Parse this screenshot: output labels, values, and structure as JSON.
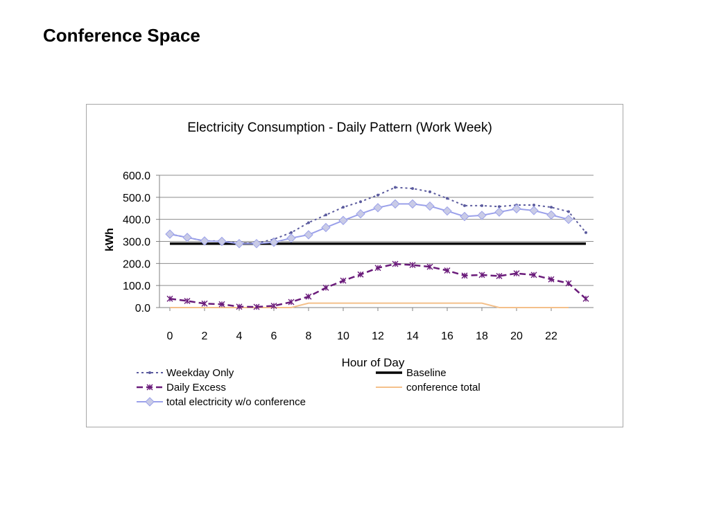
{
  "slide": {
    "title": "Conference Space"
  },
  "chart_data": {
    "type": "line",
    "title": "Electricity Consumption - Daily Pattern (Work Week)",
    "xlabel": "Hour of Day",
    "ylabel": "kWh",
    "ylim": [
      0,
      600
    ],
    "xlim": [
      0,
      24
    ],
    "grid": true,
    "legend_position": "bottom",
    "y_ticks": [
      "0.0",
      "100.0",
      "200.0",
      "300.0",
      "400.0",
      "500.0",
      "600.0"
    ],
    "x_ticks": [
      "0",
      "2",
      "4",
      "6",
      "8",
      "10",
      "12",
      "14",
      "16",
      "18",
      "20",
      "22"
    ],
    "x": [
      0,
      1,
      2,
      3,
      4,
      5,
      6,
      7,
      8,
      9,
      10,
      11,
      12,
      13,
      14,
      15,
      16,
      17,
      18,
      19,
      20,
      21,
      22,
      23,
      24
    ],
    "series": [
      {
        "name": "Weekday Only",
        "style": "dotted-marker",
        "color": "#5b5b9e",
        "values": [
          333,
          318,
          302,
          302,
          292,
          292,
          310,
          340,
          385,
          420,
          455,
          480,
          510,
          545,
          540,
          525,
          495,
          462,
          462,
          458,
          465,
          465,
          455,
          435,
          340
        ]
      },
      {
        "name": "Daily Excess",
        "style": "dashed-star",
        "color": "#6a1b7a",
        "values": [
          40,
          30,
          18,
          15,
          4,
          3,
          8,
          25,
          50,
          90,
          122,
          150,
          180,
          198,
          193,
          185,
          168,
          145,
          148,
          143,
          155,
          148,
          128,
          110,
          40
        ]
      },
      {
        "name": "total electricity w/o conference",
        "style": "solid-diamond",
        "color": "#9aa0ea",
        "values": [
          333,
          318,
          302,
          300,
          290,
          290,
          296,
          315,
          330,
          363,
          395,
          425,
          453,
          470,
          470,
          460,
          438,
          413,
          418,
          433,
          448,
          440,
          420,
          400,
          null
        ]
      },
      {
        "name": "Baseline",
        "style": "solid",
        "color": "#000000",
        "values": [
          290,
          290,
          290,
          290,
          290,
          290,
          290,
          290,
          290,
          290,
          290,
          290,
          290,
          290,
          290,
          290,
          290,
          290,
          290,
          290,
          290,
          290,
          290,
          290,
          290
        ]
      },
      {
        "name": "conference total",
        "style": "solid",
        "color": "#f4c08a",
        "values": [
          0,
          0,
          0,
          0,
          0,
          0,
          0,
          0,
          20,
          20,
          20,
          20,
          20,
          20,
          20,
          20,
          20,
          20,
          20,
          0,
          0,
          0,
          0,
          0,
          null
        ]
      }
    ]
  }
}
